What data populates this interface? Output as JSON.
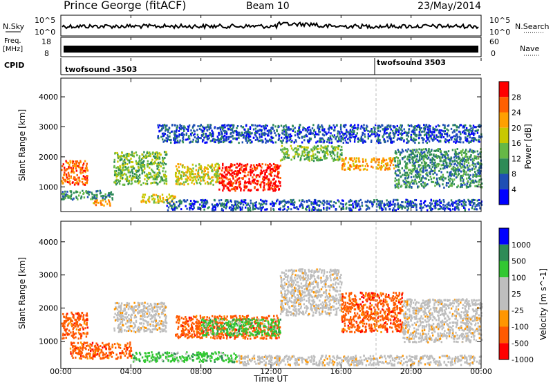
{
  "header": {
    "station": "Prince George (fitACF)",
    "beam": "Beam 10",
    "date": "23/May/2014"
  },
  "strip_labels": {
    "nsky": "N.Sky",
    "nsky_top": "10^5",
    "nsky_bottom": "10^0",
    "nsearch": "N.Search",
    "nsearch_top": "10^5",
    "nsearch_bottom": "10^0",
    "freq": "Freq.",
    "freq_unit": "[MHz]",
    "freq_top": "18",
    "freq_bottom": "8",
    "nave": "Nave",
    "nave_top": "60",
    "nave_bottom": "0",
    "cpid": "CPID"
  },
  "cpid_segments": [
    {
      "name": "twofsound -3503",
      "start": "00:00"
    },
    {
      "name": "twofsound 3503",
      "start": "18:00"
    }
  ],
  "colors": {
    "power": [
      "#0000ff",
      "#1f4fb4",
      "#2e8b57",
      "#66b846",
      "#c8c800",
      "#ffa000",
      "#ff6000",
      "#ff0000"
    ],
    "velocity": [
      "#ff0000",
      "#ff5a00",
      "#ff9600",
      "#bebebe",
      "#bebebe",
      "#32c832",
      "#2e8b57",
      "#0000ff"
    ]
  },
  "chart_data": [
    {
      "type": "heatmap",
      "name": "power",
      "ylabel": "Slant Range [km]",
      "xlabel": "Time UT",
      "x_ticks": [
        "00:00",
        "04:00",
        "08:00",
        "12:00",
        "16:00",
        "20:00",
        "00:00"
      ],
      "y_ticks": [
        1000,
        2000,
        3000,
        4000
      ],
      "ylim": [
        200,
        4600
      ],
      "xlim_hours": [
        0,
        24
      ],
      "colorbar": {
        "label": "Power [dB]",
        "ticks": [
          "4",
          "8",
          "12",
          "16",
          "20",
          "24",
          "28"
        ],
        "range": [
          0,
          32
        ]
      },
      "regions": [
        {
          "t0": 0.0,
          "t1": 1.5,
          "r0": 1100,
          "r1": 1900,
          "power": 24
        },
        {
          "t0": 0.0,
          "t1": 3.0,
          "r0": 600,
          "r1": 900,
          "power": 8
        },
        {
          "t0": 1.8,
          "t1": 2.8,
          "r0": 400,
          "r1": 600,
          "power": 20
        },
        {
          "t0": 3.0,
          "t1": 6.0,
          "r0": 1100,
          "r1": 2200,
          "power": 14
        },
        {
          "t0": 4.5,
          "t1": 6.5,
          "r0": 500,
          "r1": 800,
          "power": 16
        },
        {
          "t0": 6.5,
          "t1": 9.0,
          "r0": 1100,
          "r1": 1800,
          "power": 18
        },
        {
          "t0": 9.0,
          "t1": 12.5,
          "r0": 900,
          "r1": 1800,
          "power": 28
        },
        {
          "t0": 12.5,
          "t1": 16.0,
          "r0": 1900,
          "r1": 2400,
          "power": 12
        },
        {
          "t0": 16.0,
          "t1": 19.0,
          "r0": 1600,
          "r1": 2000,
          "power": 22
        },
        {
          "t0": 19.0,
          "t1": 24.0,
          "r0": 1000,
          "r1": 2300,
          "power": 10
        },
        {
          "t0": 6.0,
          "t1": 24.0,
          "r0": 250,
          "r1": 600,
          "power": 4
        },
        {
          "t0": 5.5,
          "t1": 24.0,
          "r0": 2500,
          "r1": 3100,
          "power": 6
        }
      ],
      "gap_line_hours": 18.0
    },
    {
      "type": "heatmap",
      "name": "velocity",
      "ylabel": "Slant Range [km]",
      "xlabel": "Time UT",
      "x_ticks": [
        "00:00",
        "04:00",
        "08:00",
        "12:00",
        "16:00",
        "20:00",
        "00:00"
      ],
      "y_ticks": [
        1000,
        2000,
        3000,
        4000
      ],
      "ylim": [
        200,
        4600
      ],
      "xlim_hours": [
        0,
        24
      ],
      "colorbar": {
        "label": "Velocity [m s^-1]",
        "ticks": [
          "1000",
          "500",
          "100",
          "25",
          "-25",
          "-100",
          "-500",
          "-1000"
        ]
      },
      "regions": [
        {
          "t0": 0.0,
          "t1": 1.5,
          "r0": 1100,
          "r1": 1900,
          "velocity": -500
        },
        {
          "t0": 0.5,
          "t1": 4.0,
          "r0": 500,
          "r1": 1000,
          "velocity": -300
        },
        {
          "t0": 3.0,
          "t1": 6.0,
          "r0": 1300,
          "r1": 2200,
          "velocity": 0
        },
        {
          "t0": 6.5,
          "t1": 12.5,
          "r0": 1100,
          "r1": 1800,
          "velocity": -150
        },
        {
          "t0": 8.0,
          "t1": 12.5,
          "r0": 1200,
          "r1": 1700,
          "velocity": 100
        },
        {
          "t0": 12.5,
          "t1": 16.0,
          "r0": 1800,
          "r1": 3200,
          "velocity": 0
        },
        {
          "t0": 16.0,
          "t1": 19.5,
          "r0": 1300,
          "r1": 2500,
          "velocity": -300
        },
        {
          "t0": 19.5,
          "t1": 24.0,
          "r0": 1000,
          "r1": 2300,
          "velocity": 0
        },
        {
          "t0": 4.0,
          "t1": 10.0,
          "r0": 400,
          "r1": 700,
          "velocity": 200
        },
        {
          "t0": 10.0,
          "t1": 24.0,
          "r0": 300,
          "r1": 600,
          "velocity": 0
        }
      ],
      "gap_line_hours": 18.0
    }
  ]
}
